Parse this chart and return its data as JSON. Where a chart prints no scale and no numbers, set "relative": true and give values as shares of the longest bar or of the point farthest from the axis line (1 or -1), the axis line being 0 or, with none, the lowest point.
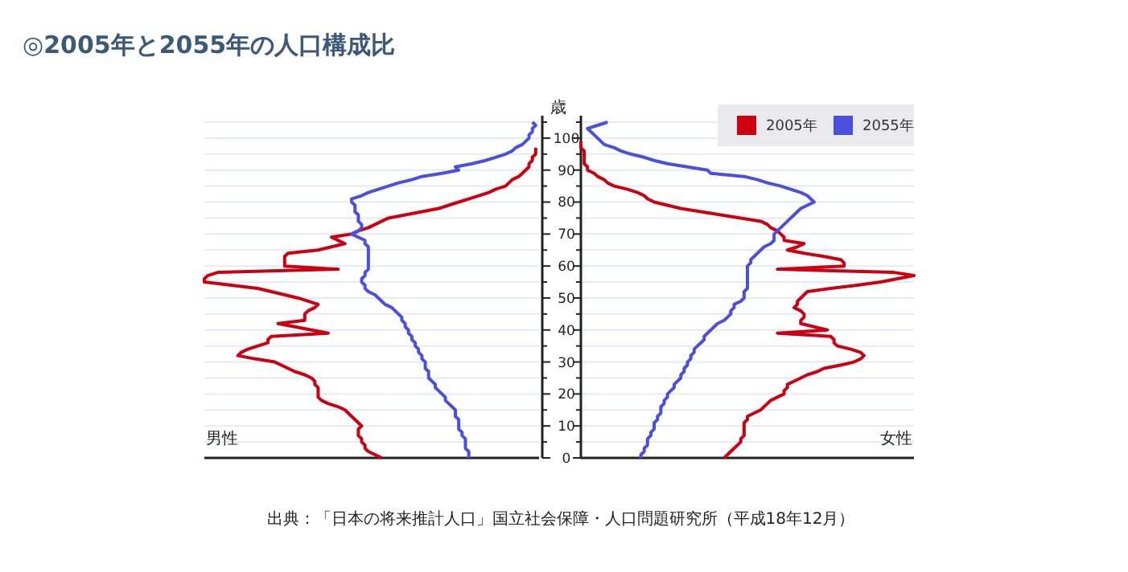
{
  "chart_data": [
    {
      "type": "line",
      "orientation": "horizontal",
      "relative": true,
      "title": "◎2005年と2055年の人口構成比",
      "ylabel": "歳",
      "annotations": [
        "男性",
        "出典：「日本の将来推計人口」国立社会保障・人口問題研究所（平成18年12月）"
      ],
      "tick_labels": "y",
      "legend": false,
      "grid": true,
      "categories": [
        null,
        null,
        null,
        null,
        null,
        "100",
        null,
        null,
        null,
        null,
        null,
        null,
        null,
        null,
        null,
        "90",
        null,
        null,
        null,
        null,
        null,
        null,
        null,
        null,
        null,
        "80",
        null,
        null,
        null,
        null,
        null,
        null,
        null,
        null,
        null,
        "70",
        null,
        null,
        null,
        null,
        null,
        null,
        null,
        null,
        null,
        "60",
        null,
        null,
        null,
        null,
        null,
        null,
        null,
        null,
        null,
        "50",
        null,
        null,
        null,
        null,
        null,
        null,
        null,
        null,
        null,
        "40",
        null,
        null,
        null,
        null,
        null,
        null,
        null,
        null,
        null,
        "30",
        null,
        null,
        null,
        null,
        null,
        null,
        null,
        null,
        null,
        "20",
        null,
        null,
        null,
        null,
        null,
        null,
        null,
        null,
        null,
        "10",
        null,
        null,
        null,
        null,
        null,
        null,
        null,
        null,
        null,
        "0"
      ],
      "series": [
        {
          "color": "#cc0011",
          "values": [
            null,
            null,
            null,
            null,
            null,
            null,
            null,
            null,
            -0.01,
            -0.01,
            -0.01,
            -0.02,
            -0.02,
            -0.03,
            -0.03,
            -0.04,
            -0.05,
            -0.06,
            -0.08,
            -0.09,
            -0.1,
            -0.13,
            -0.15,
            -0.18,
            -0.21,
            -0.24,
            -0.27,
            -0.3,
            -0.35,
            -0.4,
            -0.45,
            -0.47,
            -0.49,
            -0.51,
            -0.54,
            -0.56,
            -0.62,
            -0.6,
            -0.58,
            -0.62,
            -0.66,
            -0.75,
            -0.76,
            -0.76,
            -0.76,
            -0.76,
            -0.6,
            -0.96,
            -0.99,
            -1.0,
            -1.0,
            -0.92,
            -0.84,
            -0.8,
            -0.76,
            -0.72,
            -0.69,
            -0.66,
            -0.67,
            -0.69,
            -0.7,
            -0.7,
            -0.7,
            -0.78,
            -0.73,
            -0.68,
            -0.63,
            -0.8,
            -0.81,
            -0.81,
            -0.84,
            -0.87,
            -0.89,
            -0.9,
            -0.85,
            -0.79,
            -0.77,
            -0.75,
            -0.73,
            -0.7,
            -0.68,
            -0.67,
            -0.67,
            -0.66,
            -0.66,
            -0.66,
            -0.66,
            -0.65,
            -0.63,
            -0.6,
            -0.58,
            -0.57,
            -0.56,
            -0.55,
            -0.54,
            -0.53,
            -0.54,
            -0.54,
            -0.54,
            -0.53,
            -0.53,
            -0.52,
            -0.52,
            -0.51,
            -0.49,
            -0.47
          ]
        },
        {
          "color": "#4a4fdd",
          "values": [
            -0.02,
            -0.01,
            -0.02,
            -0.02,
            -0.03,
            -0.03,
            -0.04,
            -0.05,
            -0.07,
            -0.08,
            -0.1,
            -0.13,
            -0.16,
            -0.2,
            -0.25,
            -0.24,
            -0.29,
            -0.35,
            -0.38,
            -0.42,
            -0.45,
            -0.48,
            -0.51,
            -0.53,
            -0.56,
            -0.56,
            -0.55,
            -0.55,
            -0.55,
            -0.54,
            -0.54,
            -0.54,
            -0.53,
            -0.53,
            -0.54,
            -0.56,
            -0.54,
            -0.52,
            -0.52,
            -0.51,
            -0.51,
            -0.51,
            -0.51,
            -0.51,
            -0.51,
            -0.51,
            -0.51,
            -0.52,
            -0.52,
            -0.53,
            -0.53,
            -0.52,
            -0.52,
            -0.51,
            -0.49,
            -0.48,
            -0.47,
            -0.46,
            -0.44,
            -0.43,
            -0.42,
            -0.41,
            -0.41,
            -0.4,
            -0.4,
            -0.39,
            -0.39,
            -0.38,
            -0.38,
            -0.37,
            -0.37,
            -0.36,
            -0.36,
            -0.35,
            -0.35,
            -0.34,
            -0.34,
            -0.34,
            -0.33,
            -0.33,
            -0.33,
            -0.32,
            -0.31,
            -0.31,
            -0.3,
            -0.29,
            -0.28,
            -0.28,
            -0.27,
            -0.26,
            -0.25,
            -0.25,
            -0.25,
            -0.24,
            -0.24,
            -0.24,
            -0.24,
            -0.23,
            -0.23,
            -0.22,
            -0.22,
            -0.22,
            -0.22,
            -0.21,
            -0.21,
            -0.21
          ]
        }
      ]
    },
    {
      "type": "line",
      "orientation": "horizontal",
      "relative": true,
      "annotations": [
        "女性"
      ],
      "tick_labels": false,
      "legend": "top right",
      "grid": true,
      "categories": [
        null,
        null,
        null,
        null,
        null,
        "100",
        null,
        null,
        null,
        null,
        null,
        null,
        null,
        null,
        null,
        "90",
        null,
        null,
        null,
        null,
        null,
        null,
        null,
        null,
        null,
        "80",
        null,
        null,
        null,
        null,
        null,
        null,
        null,
        null,
        null,
        "70",
        null,
        null,
        null,
        null,
        null,
        null,
        null,
        null,
        null,
        "60",
        null,
        null,
        null,
        null,
        null,
        null,
        null,
        null,
        null,
        "50",
        null,
        null,
        null,
        null,
        null,
        null,
        null,
        null,
        null,
        "40",
        null,
        null,
        null,
        null,
        null,
        null,
        null,
        null,
        null,
        "30",
        null,
        null,
        null,
        null,
        null,
        null,
        null,
        null,
        null,
        "20",
        null,
        null,
        null,
        null,
        null,
        null,
        null,
        null,
        null,
        "10",
        null,
        null,
        null,
        null,
        null,
        null,
        null,
        null,
        null,
        "0"
      ],
      "series": [
        {
          "name": "2005年",
          "color": "#cc0011",
          "values": [
            null,
            null,
            null,
            null,
            null,
            null,
            0,
            0,
            0,
            0.01,
            0.01,
            0.01,
            0.01,
            0.01,
            0.02,
            0.02,
            0.04,
            0.05,
            0.07,
            0.08,
            0.1,
            0.14,
            0.17,
            0.19,
            0.2,
            0.22,
            0.26,
            0.3,
            0.36,
            0.42,
            0.48,
            0.54,
            0.56,
            0.57,
            0.59,
            0.6,
            0.61,
            0.61,
            0.67,
            0.65,
            0.62,
            0.67,
            0.73,
            0.78,
            0.79,
            0.79,
            0.59,
            0.94,
            1.0,
            0.95,
            0.9,
            0.83,
            0.75,
            0.68,
            0.67,
            0.66,
            0.65,
            0.65,
            0.64,
            0.66,
            0.67,
            0.67,
            0.66,
            0.66,
            0.7,
            0.74,
            0.59,
            0.75,
            0.76,
            0.76,
            0.77,
            0.81,
            0.84,
            0.85,
            0.84,
            0.82,
            0.78,
            0.73,
            0.71,
            0.68,
            0.66,
            0.64,
            0.62,
            0.62,
            0.61,
            0.61,
            0.59,
            0.57,
            0.56,
            0.55,
            0.54,
            0.52,
            0.5,
            0.5,
            0.49,
            0.49,
            0.49,
            0.49,
            0.49,
            0.48,
            0.48,
            0.47,
            0.46,
            0.45,
            0.44,
            0.43
          ]
        },
        {
          "name": "2055年",
          "color": "#4a4fdd",
          "values": [
            0.08,
            0.05,
            0.02,
            0.03,
            0.04,
            0.05,
            0.06,
            0.07,
            0.1,
            0.12,
            0.15,
            0.19,
            0.22,
            0.26,
            0.32,
            0.38,
            0.39,
            0.49,
            0.53,
            0.56,
            0.6,
            0.63,
            0.66,
            0.68,
            0.69,
            0.7,
            0.68,
            0.66,
            0.65,
            0.64,
            0.63,
            0.62,
            0.61,
            0.6,
            0.59,
            0.58,
            0.58,
            0.58,
            0.57,
            0.55,
            0.54,
            0.53,
            0.52,
            0.51,
            0.51,
            0.5,
            0.5,
            0.5,
            0.5,
            0.5,
            0.5,
            0.5,
            0.5,
            0.49,
            0.49,
            0.49,
            0.48,
            0.46,
            0.46,
            0.45,
            0.45,
            0.44,
            0.43,
            0.41,
            0.4,
            0.39,
            0.38,
            0.37,
            0.37,
            0.36,
            0.35,
            0.34,
            0.34,
            0.33,
            0.33,
            0.32,
            0.32,
            0.31,
            0.31,
            0.3,
            0.3,
            0.29,
            0.28,
            0.28,
            0.27,
            0.26,
            0.26,
            0.25,
            0.25,
            0.24,
            0.24,
            0.24,
            0.23,
            0.23,
            0.22,
            0.22,
            0.22,
            0.21,
            0.21,
            0.2,
            0.2,
            0.2,
            0.19,
            0.19,
            0.18,
            0.18
          ]
        }
      ]
    }
  ]
}
